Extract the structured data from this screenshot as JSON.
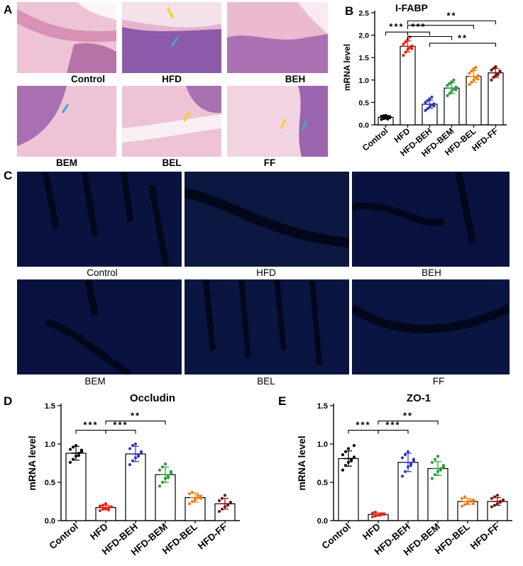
{
  "panel_letters": {
    "a": "A",
    "b": "B",
    "c": "C",
    "d": "D",
    "e": "E"
  },
  "histology_labels": [
    "Control",
    "HFD",
    "BEH",
    "BEM",
    "BEL",
    "FF"
  ],
  "fluorescence_labels": [
    "Control",
    "HFD",
    "BEH",
    "BEM",
    "BEL",
    "FF"
  ],
  "colors": {
    "Control": "#000000",
    "HFD": "#e0231c",
    "HFD-BEH": "#2e3ab5",
    "HFD-BEM": "#2a9a3b",
    "HFD-BEL": "#f07d18",
    "HFD-FF": "#7a1010",
    "he_tissue": "#e9b9cf",
    "fluor_bg": "#07102e"
  },
  "chart_data": [
    {
      "id": "B",
      "type": "bar",
      "title": "I-FABP",
      "ylabel": "mRNA level",
      "categories": [
        "Control",
        "HFD",
        "HFD-BEH",
        "HFD-BEM",
        "HFD-BEL",
        "HFD-FF"
      ],
      "values": [
        0.17,
        1.75,
        0.46,
        0.82,
        1.08,
        1.16
      ],
      "errors": [
        0.04,
        0.12,
        0.09,
        0.12,
        0.13,
        0.1
      ],
      "ylim": [
        0,
        2.5
      ],
      "yticks": [
        "0.0",
        "0.5",
        "1.0",
        "1.5",
        "2.0",
        "2.5"
      ],
      "points": [
        [
          0.12,
          0.14,
          0.15,
          0.17,
          0.18,
          0.19,
          0.2,
          0.21,
          0.13,
          0.16
        ],
        [
          1.55,
          1.62,
          1.68,
          1.72,
          1.76,
          1.8,
          1.85,
          1.9,
          1.96,
          1.7
        ],
        [
          0.32,
          0.36,
          0.4,
          0.44,
          0.47,
          0.5,
          0.54,
          0.58,
          0.62,
          0.42
        ],
        [
          0.65,
          0.7,
          0.75,
          0.8,
          0.84,
          0.88,
          0.92,
          0.96,
          1.0,
          0.78
        ],
        [
          0.9,
          0.95,
          1.0,
          1.05,
          1.1,
          1.15,
          1.2,
          1.25,
          1.28,
          1.02
        ],
        [
          1.0,
          1.06,
          1.1,
          1.14,
          1.18,
          1.22,
          1.26,
          1.3,
          1.12,
          1.2
        ]
      ],
      "comparisons": [
        {
          "from": 0,
          "to": 1,
          "label": "***",
          "y": 2.07
        },
        {
          "from": 1,
          "to": 2,
          "label": "***",
          "y": 2.07
        },
        {
          "from": 1,
          "to": 3,
          "label": "",
          "y": 1.97
        },
        {
          "from": 1,
          "to": 5,
          "label": "**",
          "y": 2.32
        },
        {
          "from": 1,
          "to": 4,
          "label": "",
          "y": 2.22
        },
        {
          "from": 2,
          "to": 5,
          "label": "**",
          "y": 1.82
        }
      ]
    },
    {
      "id": "D",
      "type": "bar",
      "title": "Occludin",
      "ylabel": "mRNA level",
      "categories": [
        "Control",
        "HFD",
        "HFD-BEH",
        "HFD-BEM",
        "HFD-BEL",
        "HFD-FF"
      ],
      "values": [
        0.88,
        0.17,
        0.87,
        0.6,
        0.3,
        0.22
      ],
      "errors": [
        0.09,
        0.03,
        0.1,
        0.1,
        0.06,
        0.07
      ],
      "ylim": [
        0,
        1.5
      ],
      "yticks": [
        "0.0",
        "0.5",
        "1.0",
        "1.5"
      ],
      "points": [
        [
          0.76,
          0.8,
          0.84,
          0.88,
          0.9,
          0.93,
          0.96,
          0.98,
          0.85,
          0.92
        ],
        [
          0.13,
          0.15,
          0.16,
          0.17,
          0.18,
          0.19,
          0.2,
          0.22,
          0.14,
          0.18
        ],
        [
          0.73,
          0.78,
          0.82,
          0.86,
          0.9,
          0.94,
          0.98,
          1.0,
          0.84,
          0.88
        ],
        [
          0.45,
          0.5,
          0.55,
          0.58,
          0.62,
          0.66,
          0.7,
          0.74,
          0.56,
          0.64
        ],
        [
          0.22,
          0.25,
          0.28,
          0.3,
          0.32,
          0.35,
          0.37,
          0.27,
          0.33,
          0.29
        ],
        [
          0.12,
          0.15,
          0.18,
          0.2,
          0.23,
          0.26,
          0.29,
          0.33,
          0.21,
          0.24
        ]
      ],
      "comparisons": [
        {
          "from": 0,
          "to": 1,
          "label": "***",
          "y": 1.18
        },
        {
          "from": 1,
          "to": 2,
          "label": "***",
          "y": 1.18
        },
        {
          "from": 1,
          "to": 3,
          "label": "**",
          "y": 1.3
        }
      ]
    },
    {
      "id": "E",
      "type": "bar",
      "title": "ZO-1",
      "ylabel": "mRNA level",
      "categories": [
        "Control",
        "HFD",
        "HFD-BEH",
        "HFD-BEM",
        "HFD-BEL",
        "HFD-FF"
      ],
      "values": [
        0.81,
        0.08,
        0.76,
        0.68,
        0.25,
        0.25
      ],
      "errors": [
        0.1,
        0.02,
        0.12,
        0.09,
        0.04,
        0.05
      ],
      "ylim": [
        0,
        1.5
      ],
      "yticks": [
        "0.0",
        "0.5",
        "1.0",
        "1.5"
      ],
      "points": [
        [
          0.66,
          0.72,
          0.76,
          0.8,
          0.83,
          0.86,
          0.9,
          0.94,
          0.78,
          0.98
        ],
        [
          0.05,
          0.06,
          0.07,
          0.08,
          0.09,
          0.1,
          0.11,
          0.07,
          0.09,
          0.08
        ],
        [
          0.58,
          0.64,
          0.7,
          0.74,
          0.78,
          0.82,
          0.86,
          0.9,
          0.72,
          0.8
        ],
        [
          0.55,
          0.6,
          0.64,
          0.68,
          0.72,
          0.76,
          0.8,
          0.84,
          0.66,
          0.7
        ],
        [
          0.19,
          0.21,
          0.23,
          0.25,
          0.27,
          0.29,
          0.31,
          0.24,
          0.26,
          0.22
        ],
        [
          0.18,
          0.2,
          0.22,
          0.25,
          0.27,
          0.29,
          0.31,
          0.33,
          0.24,
          0.26
        ]
      ],
      "comparisons": [
        {
          "from": 0,
          "to": 1,
          "label": "***",
          "y": 1.18
        },
        {
          "from": 1,
          "to": 2,
          "label": "***",
          "y": 1.18
        },
        {
          "from": 1,
          "to": 3,
          "label": "**",
          "y": 1.3
        }
      ]
    }
  ]
}
